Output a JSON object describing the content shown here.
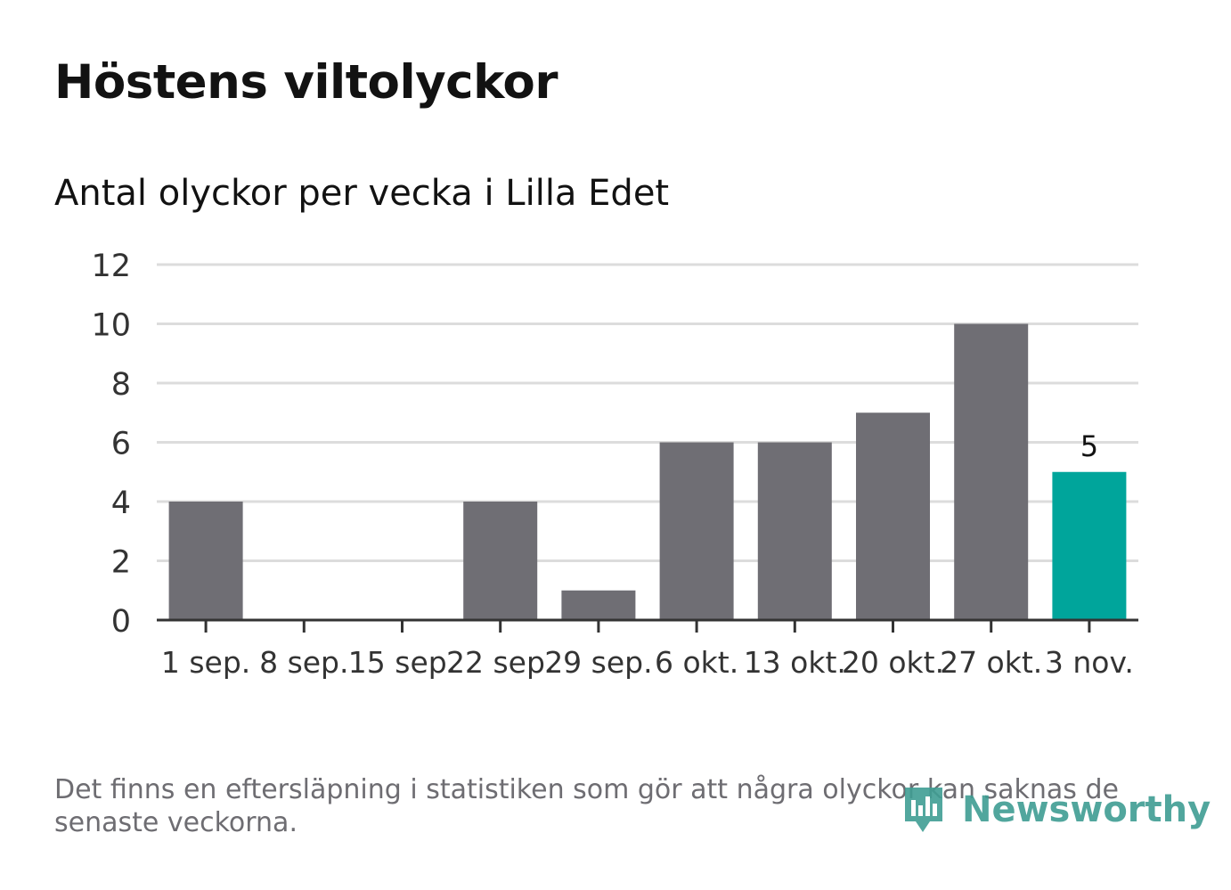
{
  "header": {
    "title": "Höstens viltolyckor",
    "subtitle": "Antal olyckor per vecka i Lilla Edet"
  },
  "footer": {
    "note": "Det finns en eftersläpning i statistiken som gör att några olyckor kan saknas de senaste veckorna.",
    "brand": "Newsworthy"
  },
  "colors": {
    "bar": "#6f6e74",
    "highlight": "#00a59b",
    "grid": "#dcdcdc",
    "axis": "#333333",
    "text": "#121212",
    "muted": "#6e6d72"
  },
  "chart_data": {
    "type": "bar",
    "title": "Höstens viltolyckor",
    "subtitle": "Antal olyckor per vecka i Lilla Edet",
    "categories": [
      "1 sep.",
      "8 sep.",
      "15 sep.",
      "22 sep.",
      "29 sep.",
      "6 okt.",
      "13 okt.",
      "20 okt.",
      "27 okt.",
      "3 nov."
    ],
    "values": [
      4,
      0,
      0,
      4,
      1,
      6,
      6,
      7,
      10,
      5
    ],
    "highlight_index": 9,
    "data_labels": [
      {
        "index": 9,
        "text": "5"
      }
    ],
    "ylim": [
      0,
      12
    ],
    "yticks": [
      0,
      2,
      4,
      6,
      8,
      10,
      12
    ],
    "grid": true,
    "legend": "none"
  }
}
